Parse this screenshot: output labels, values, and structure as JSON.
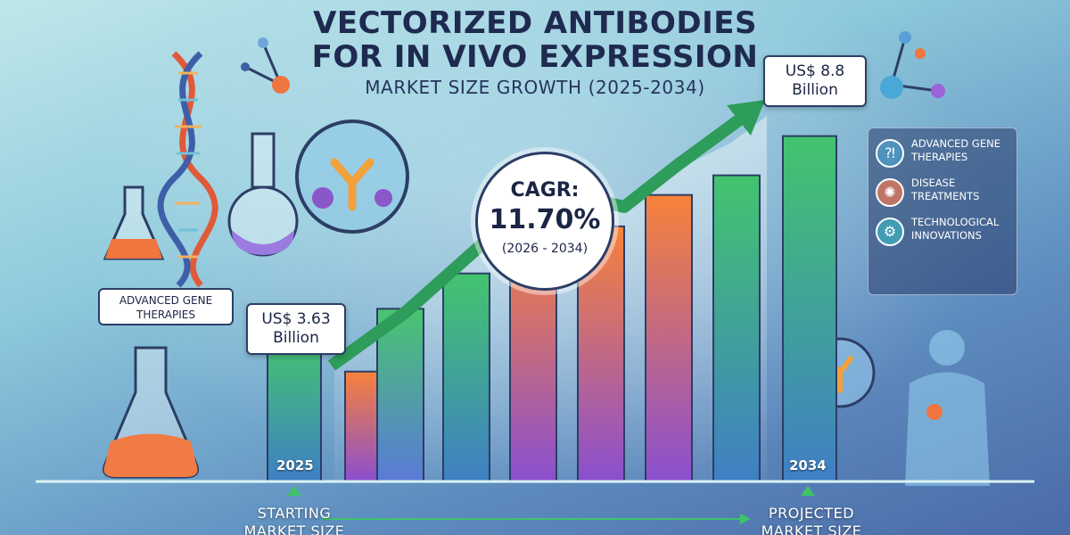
{
  "title_line_1": "VECTORIZED ANTIBODIES",
  "title_line_2": "FOR IN VIVO EXPRESSION",
  "subtitle": "MARKET SIZE GROWTH (2025-2034)",
  "start_callout": {
    "amount": "US$ 3.63",
    "unit": "Billion"
  },
  "end_callout": {
    "amount": "US$ 8.8",
    "unit": "Billion"
  },
  "cagr": {
    "label": "CAGR:",
    "value": "11.70%",
    "period": "(2026 - 2034)"
  },
  "year_labels": {
    "start": "2025",
    "end": "2034"
  },
  "bottom_labels": {
    "start_line1": "STARTING",
    "start_line2": "MARKET SIZE",
    "end_line1": "PROJECTED",
    "end_line2": "MARKET SIZE"
  },
  "left_label": {
    "line1": "ADVANCED GENE",
    "line2": "THERAPIES"
  },
  "side_panel": {
    "items": [
      {
        "line1": "ADVANCED GENE",
        "line2": "THERAPIES",
        "icon": "dna-icon"
      },
      {
        "line1": "DISEASE",
        "line2": "TREATMENTS",
        "icon": "virus-icon"
      },
      {
        "line1": "TECHNOLOGICAL",
        "line2": "INNOVATIONS",
        "icon": "gear-icon"
      }
    ]
  },
  "colors": {
    "title": "#1e2a4f",
    "arrow": "#2e9c5a",
    "bar_green": "#37b46a",
    "bar_orange": "#f5843b",
    "bar_purple": "#7a4fd0"
  },
  "chart_data": {
    "type": "bar",
    "title": "VECTORIZED ANTIBODIES FOR IN VIVO EXPRESSION",
    "subtitle": "MARKET SIZE GROWTH (2025-2034)",
    "categories": [
      "2025",
      "",
      "",
      "",
      "",
      "",
      "",
      "",
      "2034"
    ],
    "values": [
      3.63,
      2.8,
      4.4,
      5.3,
      6.4,
      6.5,
      7.3,
      7.8,
      8.8
    ],
    "value_unit": "US$ Billion",
    "labeled_values": {
      "2025": "US$ 3.63 Billion",
      "2034": "US$ 8.8 Billion"
    },
    "ylim": [
      0,
      9.2
    ],
    "grid": false,
    "trend_arrow": true,
    "cagr": "11.70%"
  }
}
